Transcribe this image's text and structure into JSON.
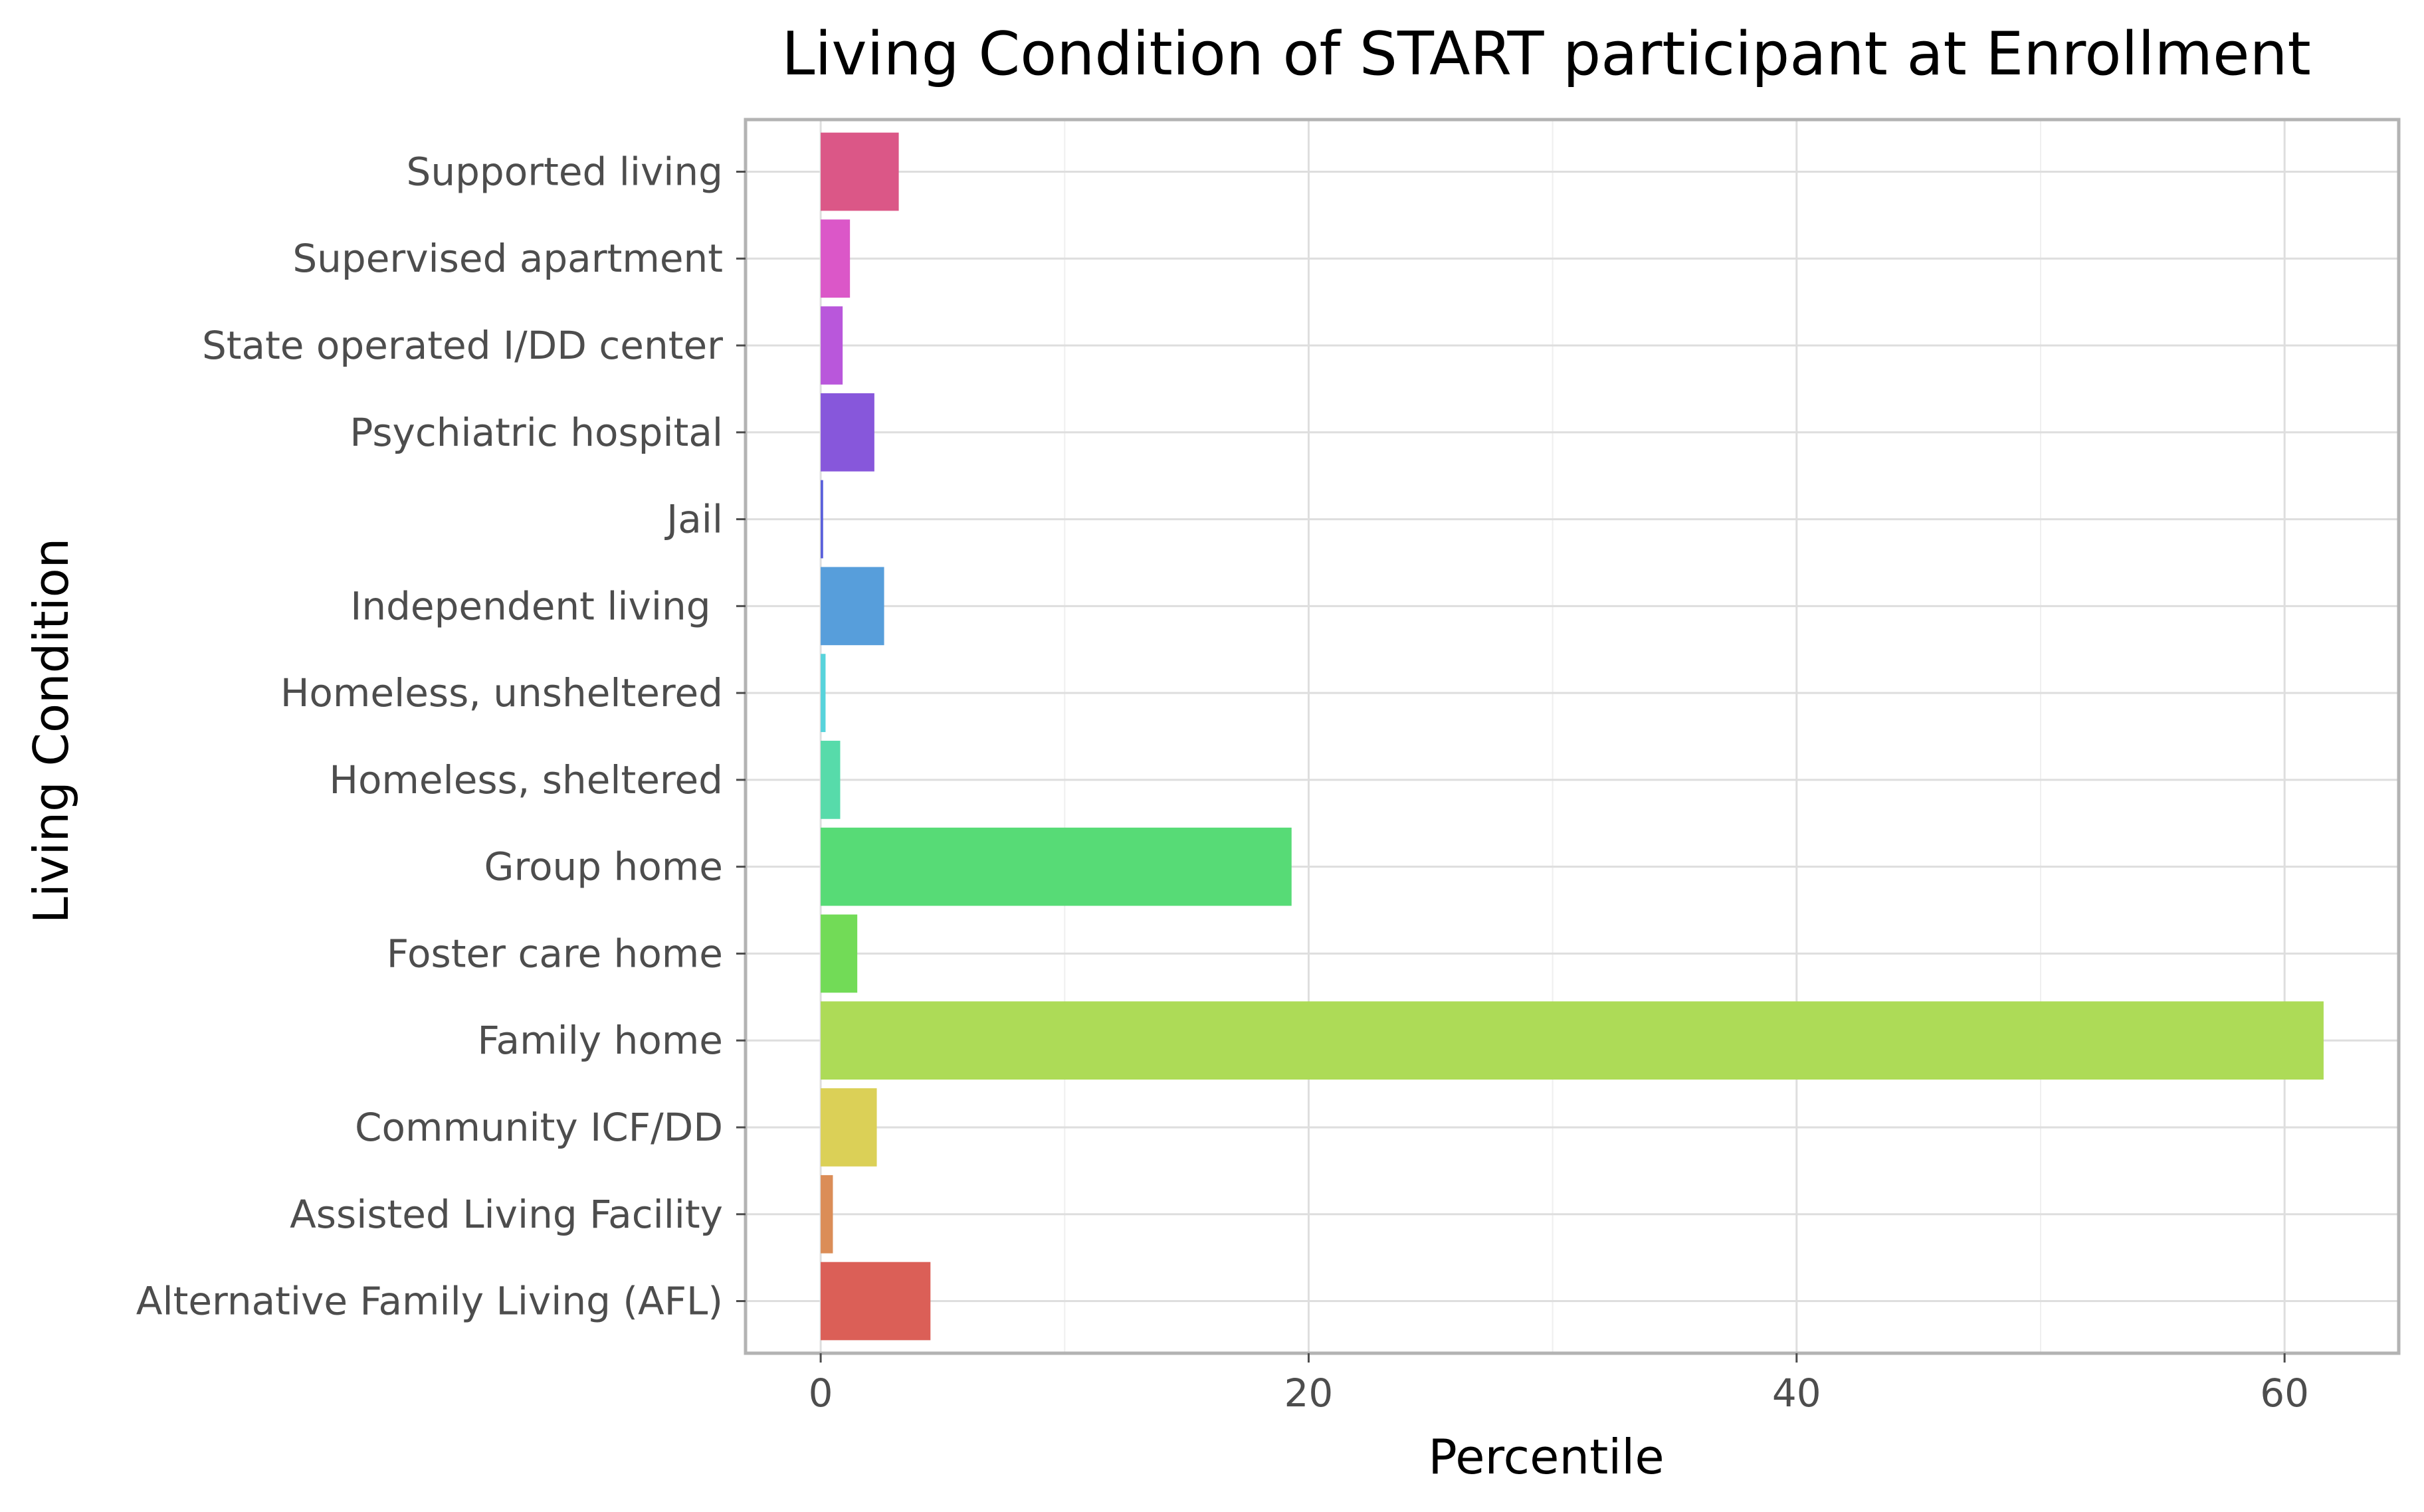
{
  "chart_data": {
    "type": "bar",
    "orientation": "horizontal",
    "title": "Living Condition of START participant at Enrollment",
    "xlabel": "Percentile",
    "ylabel": "Living Condition",
    "categories": [
      "Alternative Family Living (AFL)",
      "Assisted Living Facility",
      "Community ICF/DD",
      "Family home",
      "Foster care home",
      "Group home",
      "Homeless, sheltered",
      "Homeless, unsheltered",
      "Independent living ",
      "Jail",
      "Psychiatric hospital",
      "State operated I/DD center",
      "Supervised apartment",
      "Supported living"
    ],
    "values": [
      4.5,
      0.5,
      2.3,
      61.6,
      1.5,
      19.3,
      0.8,
      0.2,
      2.6,
      0.1,
      2.2,
      0.9,
      1.2,
      3.2
    ],
    "colors": [
      "#db5f57",
      "#db8d57",
      "#dbd057",
      "#addb57",
      "#72db57",
      "#57db76",
      "#57dbaa",
      "#57d3db",
      "#579edb",
      "#575ddb",
      "#8757db",
      "#b957db",
      "#db57c8",
      "#db5787"
    ],
    "xticks": [
      0,
      20,
      40,
      60
    ],
    "xlim": [
      -3.08,
      64.68
    ],
    "grid": true,
    "legend": "none"
  }
}
